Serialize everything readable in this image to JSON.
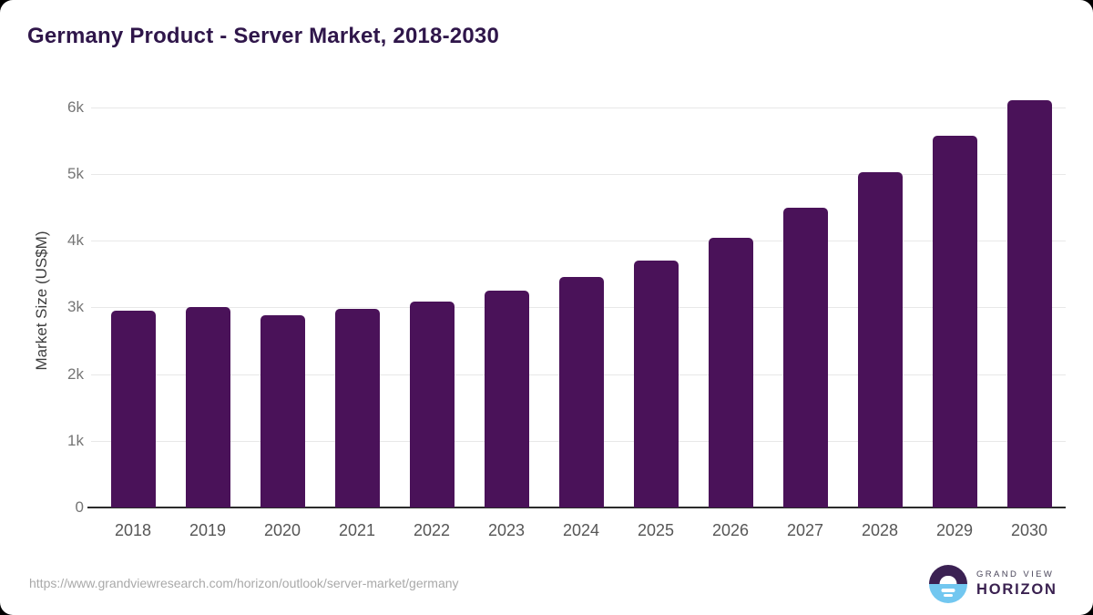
{
  "title": "Germany Product - Server Market, 2018-2030",
  "source_url": "https://www.grandviewresearch.com/horizon/outlook/server-market/germany",
  "branding": {
    "line1": "GRAND VIEW",
    "line2": "HORIZON",
    "icon": "horizon-sunrise-icon"
  },
  "colors": {
    "bar": "#4a1259",
    "title": "#2f164a",
    "gridline": "#e8e8e8",
    "axis_line": "#2b2b2b",
    "x_label": "#565656",
    "y_label": "#757575",
    "axis_title": "#3d3d3d",
    "url_text": "#a9a9a9",
    "logo_purple": "#3b2153",
    "logo_blue": "#72c7f0"
  },
  "chart_data": {
    "type": "bar",
    "title": "Germany Product - Server Market, 2018-2030",
    "categories": [
      "2018",
      "2019",
      "2020",
      "2021",
      "2022",
      "2023",
      "2024",
      "2025",
      "2026",
      "2027",
      "2028",
      "2029",
      "2030"
    ],
    "values": [
      2950,
      3005,
      2890,
      2975,
      3085,
      3255,
      3455,
      3705,
      4050,
      4490,
      5030,
      5570,
      6105
    ],
    "xlabel": "",
    "ylabel": "Market Size (US$M)",
    "yticks": [
      "0",
      "1k",
      "2k",
      "3k",
      "4k",
      "5k",
      "6k"
    ],
    "ytick_values": [
      0,
      1000,
      2000,
      3000,
      4000,
      5000,
      6000
    ],
    "ylim": [
      0,
      6000
    ],
    "grid": "horizontal",
    "legend": "none",
    "bar_color": "#4a1259"
  }
}
